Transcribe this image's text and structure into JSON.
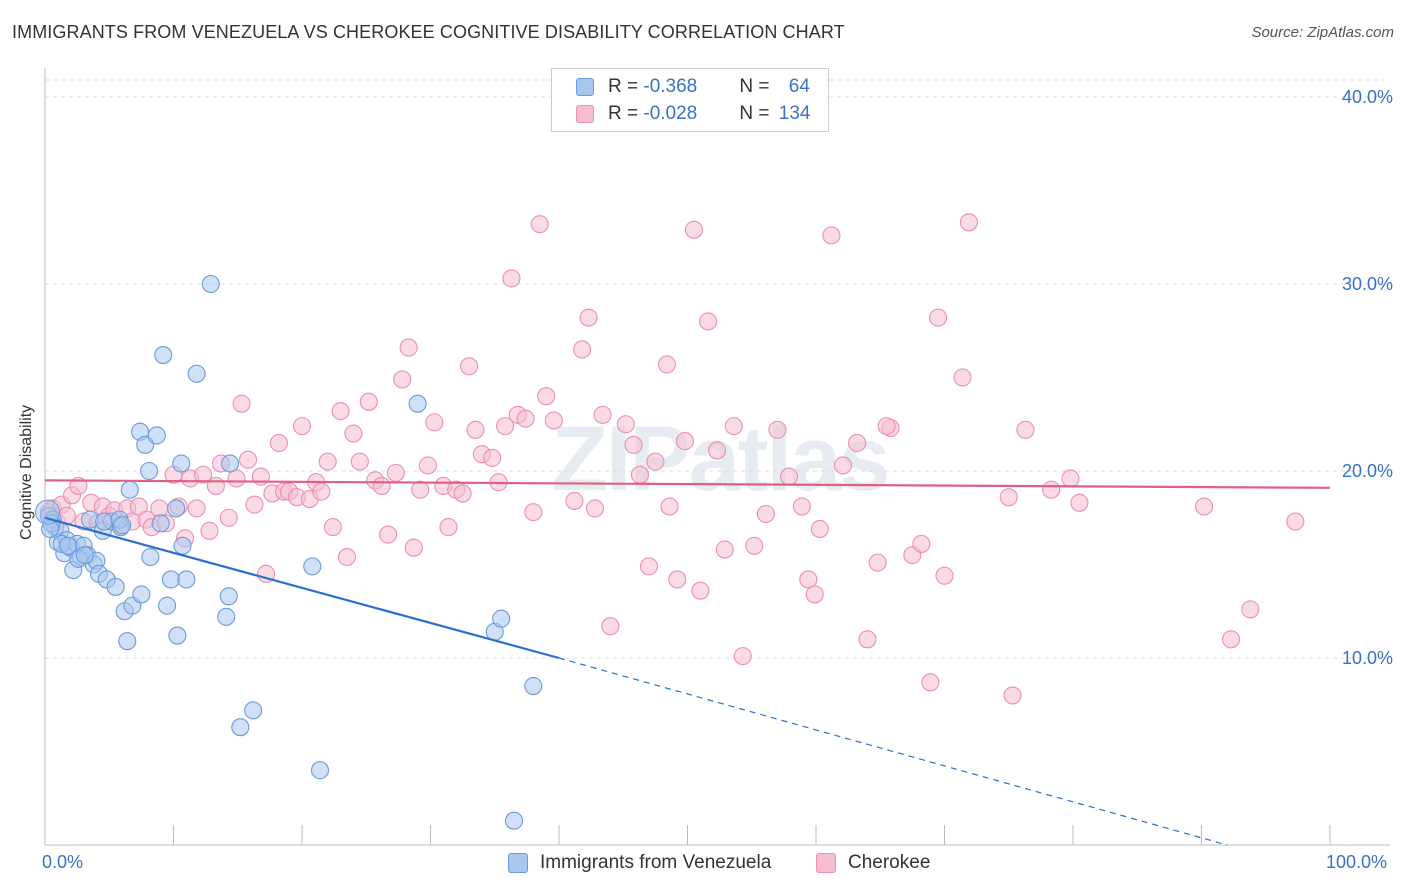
{
  "title": "IMMIGRANTS FROM VENEZUELA VS CHEROKEE COGNITIVE DISABILITY CORRELATION CHART",
  "source": "Source: ZipAtlas.com",
  "watermark": "ZIPatlas",
  "legend": {
    "rows": [
      {
        "r_label": "R = ",
        "r_value": "-0.368",
        "n_label": "N = ",
        "n_value": "64"
      },
      {
        "r_label": "R = ",
        "r_value": "-0.028",
        "n_label": "N = ",
        "n_value": "134"
      }
    ]
  },
  "colors": {
    "blue_fill": "#a9c6ee",
    "blue_stroke": "#6b9bdc",
    "blue_line": "#2a6fd0",
    "pink_fill": "#f6bdd0",
    "pink_stroke": "#ec8fb0",
    "pink_line": "#e0607f",
    "tick_text": "#3a70c8",
    "grid": "#dddddd"
  },
  "chart_data": {
    "type": "scatter",
    "title": "IMMIGRANTS FROM VENEZUELA VS CHEROKEE COGNITIVE DISABILITY CORRELATION CHART",
    "xlabel": "",
    "ylabel": "Cognitive Disability",
    "xlim": [
      0,
      100
    ],
    "ylim": [
      0,
      40
    ],
    "x_tick_labels": [
      "0.0%",
      "100.0%"
    ],
    "y_ticks": [
      10,
      20,
      30,
      40
    ],
    "y_tick_labels": [
      "10.0%",
      "20.0%",
      "30.0%",
      "40.0%"
    ],
    "grid": "horizontal dashed",
    "legend_placement": "bottom",
    "series": [
      {
        "name": "Immigrants from Venezuela",
        "r": -0.368,
        "n": 64,
        "trend": {
          "x0": 0,
          "y0": 17.5,
          "x1": 40,
          "y1": 10.0,
          "dashed_to_x": 92,
          "dashed_to_y": 0
        },
        "points": [
          [
            0.3,
            17.6
          ],
          [
            0.6,
            17.4
          ],
          [
            0.8,
            17.0
          ],
          [
            1.0,
            16.2
          ],
          [
            1.2,
            16.8
          ],
          [
            1.5,
            15.6
          ],
          [
            1.7,
            16.3
          ],
          [
            2.0,
            15.9
          ],
          [
            2.2,
            14.7
          ],
          [
            2.5,
            16.1
          ],
          [
            2.8,
            15.4
          ],
          [
            3.0,
            16.0
          ],
          [
            3.3,
            15.5
          ],
          [
            3.5,
            17.4
          ],
          [
            3.8,
            15.0
          ],
          [
            4.0,
            15.2
          ],
          [
            4.2,
            14.5
          ],
          [
            4.5,
            16.8
          ],
          [
            4.8,
            14.2
          ],
          [
            5.2,
            17.3
          ],
          [
            5.5,
            13.8
          ],
          [
            5.9,
            17.0
          ],
          [
            6.2,
            12.5
          ],
          [
            6.4,
            10.9
          ],
          [
            6.6,
            19.0
          ],
          [
            6.8,
            12.8
          ],
          [
            7.5,
            13.4
          ],
          [
            7.4,
            22.1
          ],
          [
            7.8,
            21.4
          ],
          [
            8.1,
            20.0
          ],
          [
            8.2,
            15.4
          ],
          [
            8.7,
            21.9
          ],
          [
            9.0,
            17.2
          ],
          [
            9.2,
            26.2
          ],
          [
            9.5,
            12.8
          ],
          [
            9.8,
            14.2
          ],
          [
            10.2,
            18.0
          ],
          [
            10.3,
            11.2
          ],
          [
            10.6,
            20.4
          ],
          [
            10.7,
            16.0
          ],
          [
            11.0,
            14.2
          ],
          [
            11.8,
            25.2
          ],
          [
            12.9,
            30.0
          ],
          [
            14.1,
            12.2
          ],
          [
            14.3,
            13.3
          ],
          [
            14.4,
            20.4
          ],
          [
            15.2,
            6.3
          ],
          [
            16.2,
            7.2
          ],
          [
            20.8,
            14.9
          ],
          [
            21.4,
            4.0
          ],
          [
            29.0,
            23.6
          ],
          [
            35.0,
            11.4
          ],
          [
            35.5,
            12.1
          ],
          [
            36.5,
            1.3
          ],
          [
            38.0,
            8.5
          ],
          [
            0.5,
            17.2
          ],
          [
            1.3,
            16.1
          ],
          [
            2.6,
            15.3
          ],
          [
            4.6,
            17.3
          ],
          [
            5.8,
            17.4
          ],
          [
            0.4,
            16.9
          ],
          [
            1.8,
            16.0
          ],
          [
            3.1,
            15.5
          ],
          [
            6.0,
            17.1
          ]
        ]
      },
      {
        "name": "Cherokee",
        "r": -0.028,
        "n": 134,
        "trend": {
          "x0": 0,
          "y0": 19.5,
          "x1": 100,
          "y1": 19.1
        },
        "points": [
          [
            0.3,
            17.8
          ],
          [
            0.6,
            18.0
          ],
          [
            0.9,
            17.3
          ],
          [
            1.3,
            18.2
          ],
          [
            1.7,
            17.6
          ],
          [
            2.1,
            18.7
          ],
          [
            2.6,
            19.2
          ],
          [
            3.0,
            17.3
          ],
          [
            3.6,
            18.3
          ],
          [
            4.1,
            17.2
          ],
          [
            4.5,
            18.1
          ],
          [
            5.0,
            17.6
          ],
          [
            5.4,
            17.9
          ],
          [
            5.9,
            17.0
          ],
          [
            6.4,
            18.0
          ],
          [
            6.8,
            17.3
          ],
          [
            7.3,
            18.1
          ],
          [
            7.9,
            17.4
          ],
          [
            8.3,
            17.0
          ],
          [
            8.9,
            18.0
          ],
          [
            9.4,
            17.2
          ],
          [
            10.0,
            19.8
          ],
          [
            10.4,
            18.1
          ],
          [
            10.9,
            16.4
          ],
          [
            11.3,
            19.6
          ],
          [
            11.8,
            18.0
          ],
          [
            12.3,
            19.8
          ],
          [
            12.8,
            16.8
          ],
          [
            13.3,
            19.2
          ],
          [
            13.7,
            20.4
          ],
          [
            14.3,
            17.5
          ],
          [
            14.9,
            19.6
          ],
          [
            15.3,
            23.6
          ],
          [
            15.8,
            20.6
          ],
          [
            16.3,
            18.2
          ],
          [
            16.8,
            19.7
          ],
          [
            17.2,
            14.5
          ],
          [
            17.7,
            18.8
          ],
          [
            18.2,
            21.5
          ],
          [
            18.6,
            18.9
          ],
          [
            19.0,
            18.9
          ],
          [
            19.6,
            18.6
          ],
          [
            20.0,
            22.4
          ],
          [
            20.6,
            18.5
          ],
          [
            21.1,
            19.4
          ],
          [
            21.5,
            18.9
          ],
          [
            22.0,
            20.5
          ],
          [
            22.4,
            17.0
          ],
          [
            23.0,
            23.2
          ],
          [
            23.5,
            15.4
          ],
          [
            24.0,
            22.0
          ],
          [
            24.5,
            20.5
          ],
          [
            25.2,
            23.7
          ],
          [
            25.7,
            19.5
          ],
          [
            26.2,
            19.2
          ],
          [
            26.7,
            16.6
          ],
          [
            27.3,
            19.9
          ],
          [
            27.8,
            24.9
          ],
          [
            28.3,
            26.6
          ],
          [
            28.7,
            15.9
          ],
          [
            29.2,
            19.0
          ],
          [
            29.8,
            20.3
          ],
          [
            30.3,
            22.6
          ],
          [
            31.0,
            19.2
          ],
          [
            31.4,
            17.0
          ],
          [
            32.0,
            19.0
          ],
          [
            32.5,
            18.8
          ],
          [
            33.0,
            25.6
          ],
          [
            33.5,
            22.2
          ],
          [
            34.0,
            20.9
          ],
          [
            34.8,
            20.7
          ],
          [
            35.3,
            19.4
          ],
          [
            35.8,
            22.4
          ],
          [
            36.3,
            30.3
          ],
          [
            36.8,
            23.0
          ],
          [
            37.4,
            22.8
          ],
          [
            38.0,
            17.8
          ],
          [
            38.5,
            33.2
          ],
          [
            39.0,
            24.0
          ],
          [
            39.6,
            22.7
          ],
          [
            41.2,
            18.4
          ],
          [
            41.8,
            26.5
          ],
          [
            42.3,
            28.2
          ],
          [
            42.8,
            18.0
          ],
          [
            43.4,
            23.0
          ],
          [
            44.0,
            11.7
          ],
          [
            45.2,
            22.5
          ],
          [
            45.8,
            21.4
          ],
          [
            46.3,
            19.8
          ],
          [
            47.0,
            14.9
          ],
          [
            47.5,
            20.5
          ],
          [
            48.4,
            25.7
          ],
          [
            49.2,
            14.2
          ],
          [
            49.8,
            21.6
          ],
          [
            50.5,
            32.9
          ],
          [
            51.0,
            13.6
          ],
          [
            51.6,
            28.0
          ],
          [
            52.3,
            21.1
          ],
          [
            52.9,
            15.8
          ],
          [
            53.6,
            22.4
          ],
          [
            54.3,
            10.1
          ],
          [
            55.2,
            16.0
          ],
          [
            56.1,
            17.7
          ],
          [
            57.0,
            22.2
          ],
          [
            57.9,
            19.7
          ],
          [
            58.9,
            18.1
          ],
          [
            59.4,
            14.2
          ],
          [
            59.9,
            13.4
          ],
          [
            60.3,
            16.9
          ],
          [
            61.2,
            32.6
          ],
          [
            62.1,
            20.3
          ],
          [
            63.2,
            21.5
          ],
          [
            64.0,
            11.0
          ],
          [
            64.8,
            15.1
          ],
          [
            65.8,
            22.3
          ],
          [
            67.5,
            15.5
          ],
          [
            68.2,
            16.1
          ],
          [
            68.9,
            8.7
          ],
          [
            69.5,
            28.2
          ],
          [
            70.0,
            14.4
          ],
          [
            71.4,
            25.0
          ],
          [
            71.9,
            33.3
          ],
          [
            75.0,
            18.6
          ],
          [
            75.3,
            8.0
          ],
          [
            76.3,
            22.2
          ],
          [
            78.3,
            19.0
          ],
          [
            79.8,
            19.6
          ],
          [
            80.5,
            18.3
          ],
          [
            90.2,
            18.1
          ],
          [
            92.3,
            11.0
          ],
          [
            93.8,
            12.6
          ],
          [
            97.3,
            17.3
          ],
          [
            65.5,
            22.4
          ],
          [
            48.6,
            18.1
          ]
        ]
      }
    ]
  },
  "bottom_legend": [
    {
      "label": "Immigrants from Venezuela"
    },
    {
      "label": "Cherokee"
    }
  ]
}
